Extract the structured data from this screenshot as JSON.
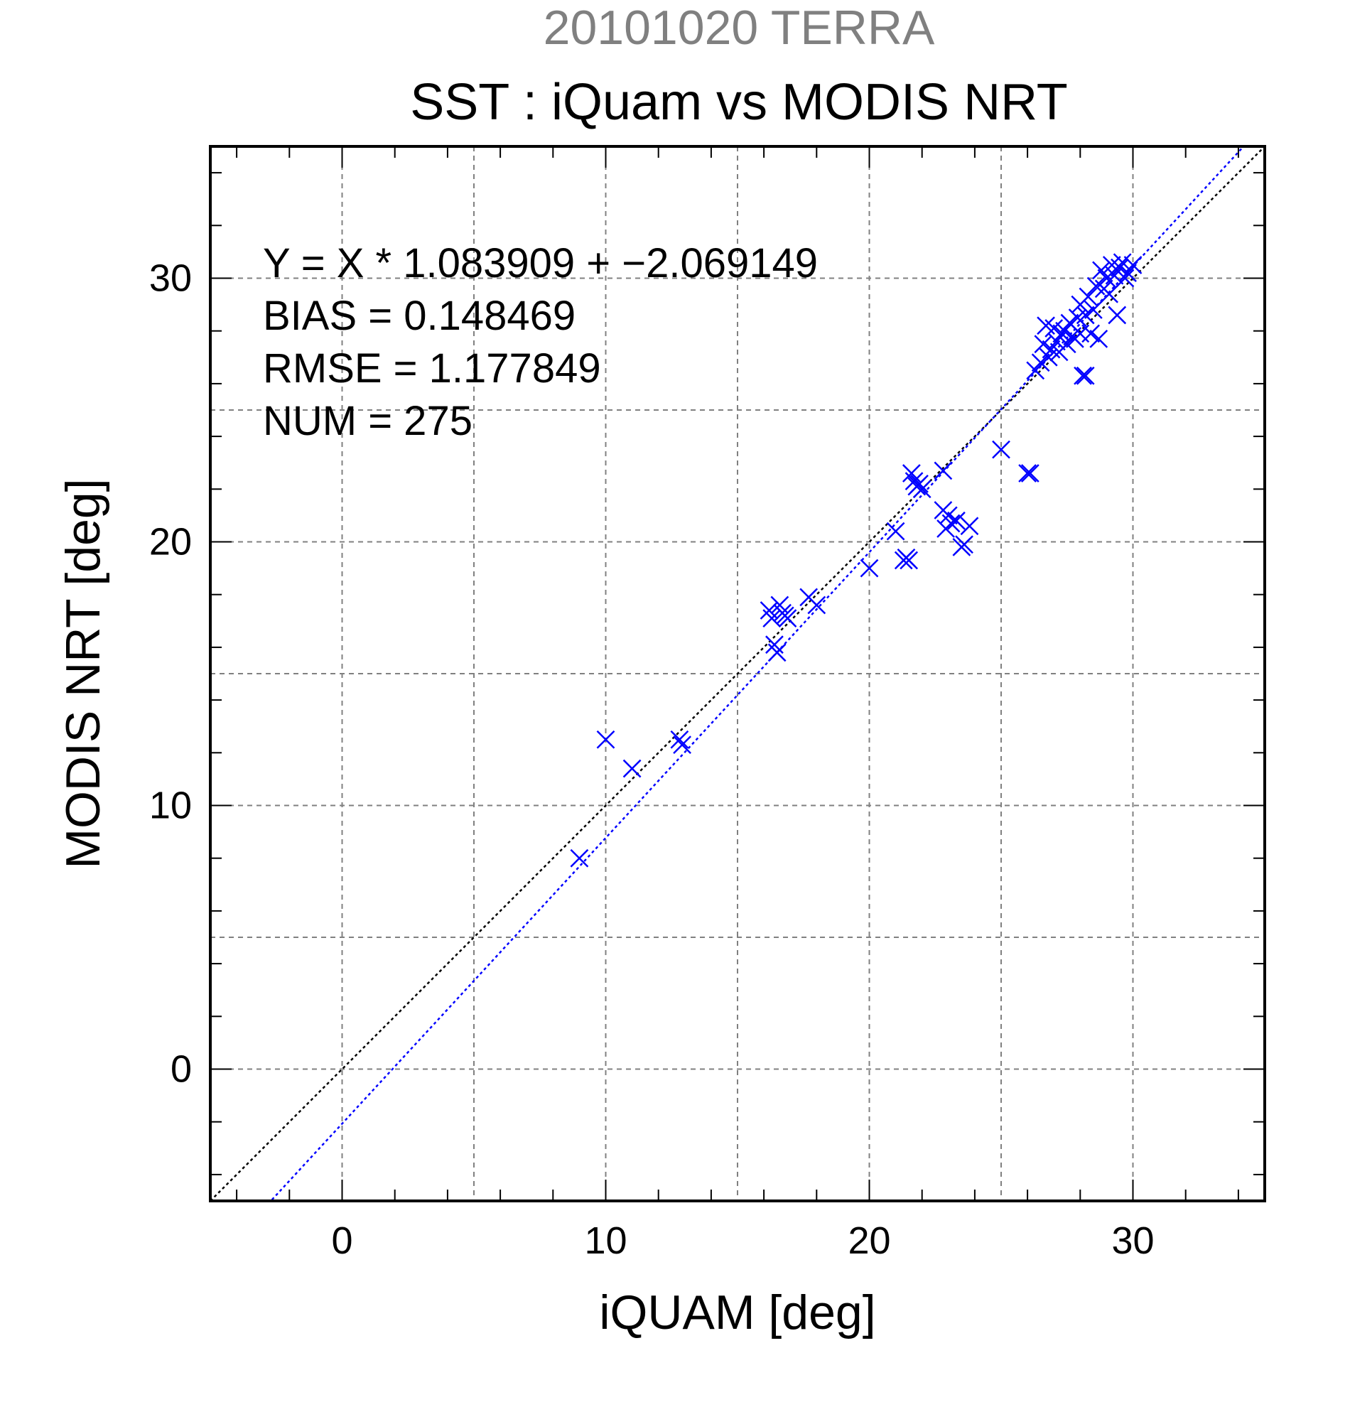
{
  "chart_data": {
    "type": "scatter",
    "supertitle": "20101020 TERRA",
    "title": "SST : iQuam vs MODIS NRT",
    "xlabel": "iQUAM [deg]",
    "ylabel": "MODIS NRT [deg]",
    "xlim": [
      -5,
      35
    ],
    "ylim": [
      -5,
      35
    ],
    "xticks": [
      0,
      10,
      20,
      30
    ],
    "yticks": [
      0,
      10,
      20,
      30
    ],
    "xtick_labels": [
      "0",
      "10",
      "20",
      "30"
    ],
    "ytick_labels": [
      "0",
      "10",
      "20",
      "30"
    ],
    "grid": true,
    "stats": [
      "Y = X * 1.083909 + −2.069149",
      "BIAS = 0.148469",
      "RMSE = 1.177849",
      "NUM = 275"
    ],
    "lines": [
      {
        "role": "one-to-one",
        "slope": 1.0,
        "intercept": 0.0,
        "color": "#000000",
        "style": "dotted"
      },
      {
        "role": "regression",
        "slope": 1.083909,
        "intercept": -2.069149,
        "color": "#0000ff",
        "style": "dotted"
      }
    ],
    "series": [
      {
        "marker": "x",
        "color": "#0000ff",
        "points": [
          [
            9.0,
            8.0
          ],
          [
            10.0,
            12.5
          ],
          [
            11.0,
            11.4
          ],
          [
            12.8,
            12.5
          ],
          [
            12.9,
            12.3
          ],
          [
            16.2,
            17.4
          ],
          [
            16.3,
            17.1
          ],
          [
            16.4,
            16.1
          ],
          [
            16.5,
            15.8
          ],
          [
            16.6,
            17.6
          ],
          [
            16.7,
            17.3
          ],
          [
            16.8,
            17.2
          ],
          [
            16.9,
            17.1
          ],
          [
            17.7,
            17.9
          ],
          [
            18.0,
            17.6
          ],
          [
            20.0,
            19.0
          ],
          [
            21.0,
            20.4
          ],
          [
            21.3,
            19.3
          ],
          [
            21.4,
            19.4
          ],
          [
            21.5,
            19.3
          ],
          [
            21.6,
            22.6
          ],
          [
            21.7,
            22.3
          ],
          [
            21.8,
            22.1
          ],
          [
            21.9,
            22.2
          ],
          [
            22.0,
            22.0
          ],
          [
            22.8,
            22.7
          ],
          [
            22.8,
            21.2
          ],
          [
            22.9,
            20.5
          ],
          [
            23.0,
            21.0
          ],
          [
            23.1,
            20.7
          ],
          [
            23.3,
            20.8
          ],
          [
            23.5,
            19.8
          ],
          [
            23.6,
            19.9
          ],
          [
            23.8,
            20.6
          ],
          [
            25.0,
            23.5
          ],
          [
            26.0,
            22.6
          ],
          [
            26.1,
            22.6
          ],
          [
            26.3,
            26.5
          ],
          [
            26.5,
            26.8
          ],
          [
            26.6,
            27.5
          ],
          [
            26.7,
            28.2
          ],
          [
            26.8,
            27.0
          ],
          [
            26.9,
            27.3
          ],
          [
            27.0,
            28.1
          ],
          [
            27.1,
            27.6
          ],
          [
            27.2,
            27.2
          ],
          [
            27.3,
            27.9
          ],
          [
            27.4,
            28.0
          ],
          [
            27.5,
            27.5
          ],
          [
            27.6,
            28.3
          ],
          [
            27.7,
            27.8
          ],
          [
            27.8,
            27.7
          ],
          [
            27.9,
            28.5
          ],
          [
            28.0,
            27.9
          ],
          [
            28.0,
            29.0
          ],
          [
            28.1,
            26.3
          ],
          [
            28.2,
            26.3
          ],
          [
            28.2,
            28.6
          ],
          [
            28.3,
            29.3
          ],
          [
            28.4,
            27.9
          ],
          [
            28.5,
            28.8
          ],
          [
            28.6,
            29.7
          ],
          [
            28.7,
            27.7
          ],
          [
            28.8,
            30.3
          ],
          [
            28.9,
            29.6
          ],
          [
            29.0,
            30.0
          ],
          [
            29.1,
            29.4
          ],
          [
            29.2,
            30.5
          ],
          [
            29.3,
            30.1
          ],
          [
            29.4,
            28.6
          ],
          [
            29.5,
            30.4
          ],
          [
            29.6,
            30.6
          ],
          [
            29.7,
            30.0
          ],
          [
            29.8,
            30.2
          ],
          [
            30.0,
            30.5
          ]
        ]
      }
    ]
  },
  "colors": {
    "supertitle": "#808080",
    "title": "#000000",
    "data": "#0000ff",
    "grid": "#808080",
    "frame": "#000000"
  }
}
